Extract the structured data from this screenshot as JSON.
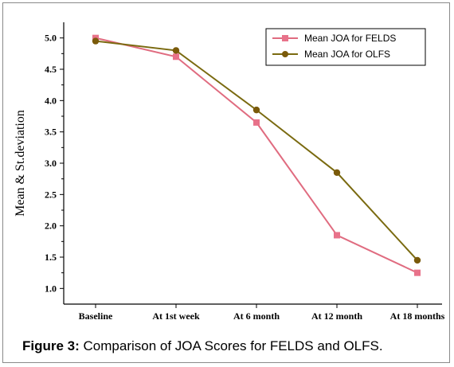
{
  "caption": {
    "label": "Figure 3:",
    "text": " Comparison of JOA Scores for FELDS and OLFS."
  },
  "chart_data": {
    "type": "line",
    "title": "",
    "xlabel": "",
    "ylabel": "Mean & St.deviation",
    "categories": [
      "Baseline",
      "At 1st week",
      "At 6 month",
      "At 12 month",
      "At 18 months"
    ],
    "ylim": [
      0.75,
      5.25
    ],
    "yticks": [
      "1.0",
      "1.5",
      "2.0",
      "2.5",
      "3.0",
      "3.5",
      "4.0",
      "4.5",
      "5.0"
    ],
    "grid": false,
    "legend_position": "top-right",
    "series": [
      {
        "name": "Mean JOA for FELDS",
        "values": [
          5.0,
          4.7,
          3.65,
          1.85,
          1.25
        ],
        "color": "#e06c80",
        "marker": "square"
      },
      {
        "name": "Mean JOA for OLFS",
        "values": [
          4.95,
          4.8,
          3.85,
          2.85,
          1.45
        ],
        "color": "#7a6a10",
        "marker": "circle"
      }
    ],
    "marker_colors": {
      "FELDS": "#e8728a",
      "OLFS": "#7a5a0a"
    }
  }
}
